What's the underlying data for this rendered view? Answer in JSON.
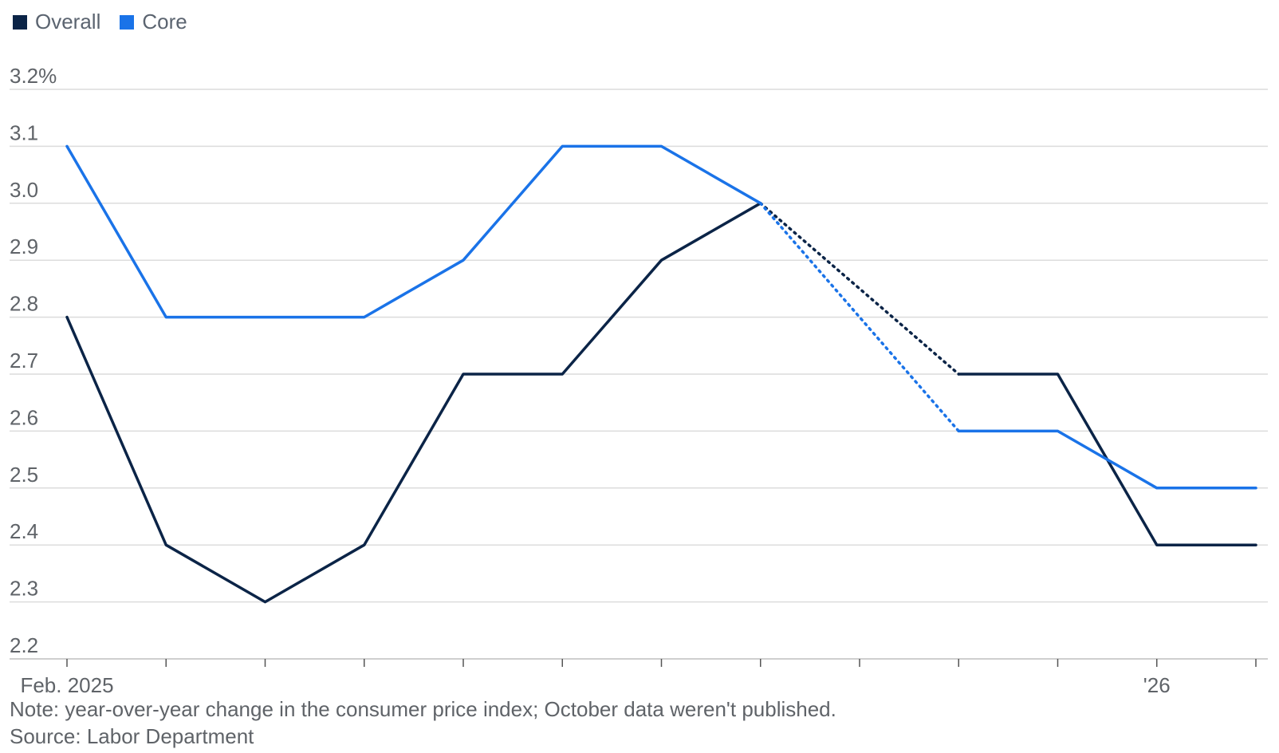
{
  "chart_data": {
    "type": "line",
    "title": "",
    "xlabel": "",
    "ylabel": "",
    "ylim": [
      2.2,
      3.2
    ],
    "y_ticks": [
      2.2,
      2.3,
      2.4,
      2.5,
      2.6,
      2.7,
      2.8,
      2.9,
      3.0,
      3.1,
      3.2
    ],
    "y_tick_labels": [
      "2.2",
      "2.3",
      "2.4",
      "2.5",
      "2.6",
      "2.7",
      "2.8",
      "2.9",
      "3.0",
      "3.1",
      "3.2%"
    ],
    "x": [
      "2025-02",
      "2025-03",
      "2025-04",
      "2025-05",
      "2025-06",
      "2025-07",
      "2025-08",
      "2025-09",
      "2025-10",
      "2025-11",
      "2025-12",
      "2026-01",
      "2026-02"
    ],
    "x_tick_labels": [
      {
        "x": "2025-02",
        "label": "Feb. 2025"
      },
      {
        "x": "2026-01",
        "label": "'26"
      }
    ],
    "missing_x": [
      "2025-10"
    ],
    "grid": true,
    "legend_position": "top-left",
    "series": [
      {
        "name": "Overall",
        "color": "#0b2447",
        "values": [
          2.8,
          2.4,
          2.3,
          2.4,
          2.7,
          2.7,
          2.9,
          3.0,
          null,
          2.7,
          2.7,
          2.4,
          2.4
        ]
      },
      {
        "name": "Core",
        "color": "#1a73e8",
        "values": [
          3.1,
          2.8,
          2.8,
          2.8,
          2.9,
          3.1,
          3.1,
          3.0,
          null,
          2.6,
          2.6,
          2.5,
          2.5
        ]
      }
    ]
  },
  "footer": {
    "note": "Note: year-over-year change in the consumer price index; October data weren't published.",
    "source": "Source: Labor Department"
  }
}
